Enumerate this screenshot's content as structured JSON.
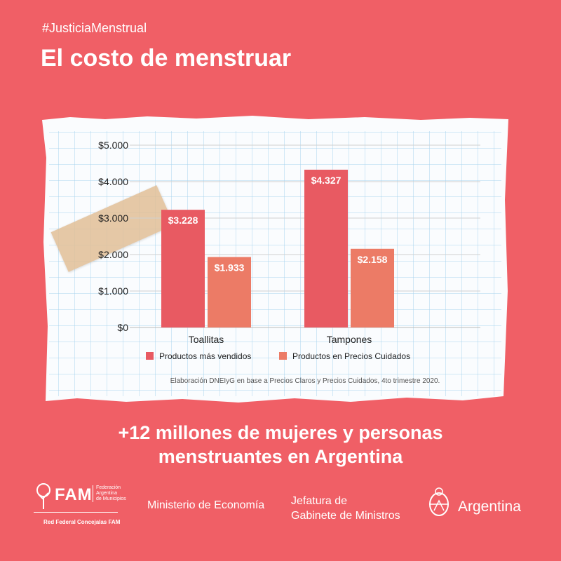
{
  "hashtag": "#JusticiaMenstrual",
  "title": "El costo de menstruar",
  "chart_data": {
    "type": "bar",
    "categories": [
      "Toallitas",
      "Tampones"
    ],
    "series": [
      {
        "name": "Productos más vendidos",
        "values": [
          3228,
          4327
        ],
        "labels": [
          "$3.228",
          "$4.327"
        ],
        "color": "#e85a62"
      },
      {
        "name": "Productos en Precios Cuidados",
        "values": [
          1933,
          2158
        ],
        "labels": [
          "$1.933",
          "$2.158"
        ],
        "color": "#ec7b66"
      }
    ],
    "ylim": [
      0,
      5000
    ],
    "yticks": [
      0,
      1000,
      2000,
      3000,
      4000,
      5000
    ],
    "ytick_labels": [
      "$0",
      "$1.000",
      "$2.000",
      "$3.000",
      "$4.000",
      "$5.000"
    ],
    "legend_position": "bottom",
    "source": "Elaboración DNEIyG en base a Precios Claros y Precios Cuidados, 4to trimestre 2020."
  },
  "headline": {
    "line1": "+12 millones de mujeres y personas",
    "line2": "menstruantes en Argentina"
  },
  "footer": {
    "fam_name": "FAM",
    "fam_sub1": "Federación",
    "fam_sub2": "Argentina",
    "fam_sub3": "de Municipios",
    "fam_red": "Red Federal Concejalas FAM",
    "ministerio": "Ministerio de Economía",
    "jefatura_line1": "Jefatura de",
    "jefatura_line2": "Gabinete de Ministros",
    "argentina": "Argentina"
  },
  "colors": {
    "background": "#f05f66",
    "grid": "#a8d3ee",
    "paper": "#f9fbfd"
  }
}
